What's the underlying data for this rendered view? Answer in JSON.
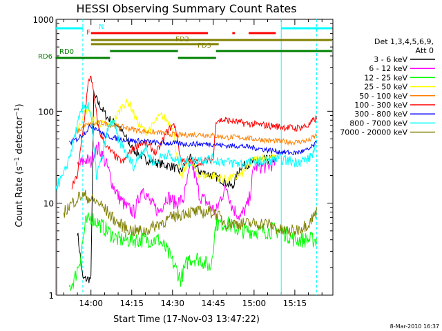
{
  "chart_data": {
    "type": "line",
    "title": "HESSI Observing Summary Count Rates",
    "xlabel": "Start Time (17-Nov-03 13:47:22)",
    "ylabel": "Count Rate (s⁻¹ detector⁻¹)",
    "ylabel_main": "Count Rate (s",
    "ylabel_sup1": "−1",
    "ylabel_mid": " detector",
    "ylabel_sup2": "−1",
    "ylabel_end": ")",
    "y_scale": "log",
    "ylim": [
      1,
      1000
    ],
    "xlim": [
      "13:47:22",
      "15:29:00"
    ],
    "x_ticks": [
      "14:00",
      "14:15",
      "14:30",
      "14:45",
      "15:00",
      "15:15"
    ],
    "y_ticks": [
      "1",
      "10",
      "100",
      "1000"
    ],
    "legend_header": [
      "Det 1,3,4,5,6,9,",
      "Att 0"
    ],
    "legend_position": "right",
    "footer_date": "8-Mar-2010 16:37",
    "series": [
      {
        "name": "3 - 6 keV",
        "color": "#000000",
        "x": [
          "13:55",
          "13:57",
          "13:59",
          "14:00",
          "14:01",
          "14:03",
          "14:06",
          "14:10",
          "14:15",
          "14:20",
          "14:25",
          "14:30",
          "14:33",
          "14:36",
          "14:40",
          "14:45",
          "14:48",
          "14:52",
          "14:55",
          "15:00",
          "15:05",
          "15:08"
        ],
        "values": [
          5,
          1.5,
          1.5,
          1.5,
          150,
          120,
          85,
          70,
          40,
          30,
          27,
          25,
          22,
          32,
          22,
          20,
          18,
          15,
          25,
          28,
          30,
          30
        ]
      },
      {
        "name": "6 - 12 keV",
        "color": "#ff00ff",
        "x": [
          "13:55",
          "13:58",
          "14:00",
          "14:01",
          "14:03",
          "14:06",
          "14:08",
          "14:10",
          "14:13",
          "14:16",
          "14:19",
          "14:22",
          "14:25",
          "14:28",
          "14:31",
          "14:34",
          "14:37",
          "14:40",
          "14:43",
          "14:46",
          "14:48",
          "14:50",
          "14:52",
          "14:55",
          "14:58",
          "15:00",
          "15:05",
          "15:08"
        ],
        "values": [
          25,
          30,
          28,
          35,
          40,
          25,
          16,
          12,
          9,
          8,
          15,
          10,
          8,
          12,
          10,
          11,
          28,
          12,
          10,
          8,
          12,
          15,
          9,
          7,
          10,
          25,
          25,
          28
        ]
      },
      {
        "name": "12 - 25 keV",
        "color": "#00ff00",
        "x": [
          "13:52",
          "13:54",
          "13:56",
          "13:58",
          "14:00",
          "14:03",
          "14:06",
          "14:10",
          "14:15",
          "14:20",
          "14:25",
          "14:28",
          "14:31",
          "14:33",
          "14:36",
          "14:40",
          "14:44",
          "14:46",
          "14:50",
          "14:55",
          "15:00",
          "15:05",
          "15:10",
          "15:15",
          "15:20",
          "15:23"
        ],
        "values": [
          1.2,
          1.5,
          2.5,
          6,
          7,
          6,
          5,
          4,
          4,
          4,
          4,
          3,
          2,
          1.5,
          2.5,
          2.5,
          2,
          6,
          6,
          5,
          5,
          5,
          5,
          4,
          4,
          4
        ]
      },
      {
        "name": "25 - 50 keV",
        "color": "#ffff00",
        "x": [
          "13:55",
          "13:57",
          "13:59",
          "14:00",
          "14:01",
          "14:03",
          "14:06",
          "14:08",
          "14:10",
          "14:12",
          "14:14",
          "14:16",
          "14:18",
          "14:20",
          "14:22",
          "14:24",
          "14:26",
          "14:28",
          "14:30",
          "14:33",
          "14:36",
          "14:40",
          "14:45",
          "14:50",
          "14:55",
          "15:00",
          "15:05",
          "15:08"
        ],
        "values": [
          60,
          90,
          110,
          90,
          80,
          75,
          70,
          75,
          95,
          120,
          125,
          90,
          70,
          60,
          65,
          80,
          90,
          80,
          70,
          18,
          30,
          20,
          20,
          18,
          20,
          30,
          32,
          30
        ]
      },
      {
        "name": "50 - 100 keV",
        "color": "#ff8000",
        "x": [
          "13:55",
          "13:58",
          "14:00",
          "14:04",
          "14:08",
          "14:14",
          "14:20",
          "14:26",
          "14:32",
          "14:40",
          "14:46",
          "14:50",
          "14:55",
          "15:00",
          "15:06",
          "15:10",
          "15:15",
          "15:20",
          "15:23"
        ],
        "values": [
          60,
          70,
          72,
          75,
          70,
          65,
          60,
          58,
          55,
          56,
          54,
          52,
          52,
          50,
          48,
          47,
          46,
          48,
          55
        ]
      },
      {
        "name": "100 - 300 keV",
        "color": "#ff0000",
        "x": [
          "13:53",
          "13:55",
          "13:57",
          "13:59",
          "14:00",
          "14:01",
          "14:03",
          "14:06",
          "14:08",
          "14:10",
          "14:12",
          "14:14",
          "14:16",
          "14:18",
          "14:20",
          "14:22",
          "14:24",
          "14:26",
          "14:28",
          "14:30",
          "14:31",
          "14:33",
          "14:36",
          "14:40",
          "14:45",
          "14:46",
          "14:50",
          "14:55",
          "15:00",
          "15:05",
          "15:10",
          "15:15",
          "15:20",
          "15:23"
        ],
        "values": [
          15,
          20,
          60,
          200,
          250,
          150,
          60,
          40,
          35,
          30,
          28,
          35,
          40,
          45,
          45,
          40,
          35,
          45,
          60,
          70,
          70,
          30,
          28,
          28,
          30,
          80,
          80,
          75,
          72,
          70,
          68,
          65,
          70,
          85
        ]
      },
      {
        "name": "300 - 800 keV",
        "color": "#0000ff",
        "x": [
          "13:52",
          "13:55",
          "13:58",
          "14:00",
          "14:02",
          "14:05",
          "14:10",
          "14:15",
          "14:20",
          "14:25",
          "14:30",
          "14:35",
          "14:40",
          "14:45",
          "14:50",
          "14:55",
          "15:00",
          "15:05",
          "15:10",
          "15:15",
          "15:20",
          "15:23"
        ],
        "values": [
          45,
          50,
          60,
          70,
          65,
          55,
          50,
          48,
          47,
          45,
          45,
          44,
          44,
          44,
          42,
          42,
          40,
          38,
          36,
          35,
          38,
          45
        ]
      },
      {
        "name": "800 - 7000 keV",
        "color": "#00ffff",
        "x": [
          "13:47",
          "13:50",
          "13:53",
          "13:55",
          "13:57",
          "13:59",
          "14:00",
          "14:01",
          "14:02",
          "14:04",
          "14:06",
          "14:08",
          "14:10",
          "14:12",
          "14:14",
          "14:16",
          "14:18",
          "14:20",
          "14:22",
          "14:24",
          "14:26",
          "14:28",
          "14:30",
          "14:33",
          "14:36",
          "14:40",
          "14:45",
          "14:50",
          "14:55",
          "15:00",
          "15:05",
          "15:10",
          "15:15",
          "15:20",
          "15:23"
        ],
        "values": [
          15,
          20,
          40,
          70,
          110,
          120,
          90,
          40,
          20,
          30,
          60,
          80,
          50,
          40,
          30,
          25,
          35,
          40,
          30,
          28,
          32,
          35,
          30,
          28,
          28,
          30,
          30,
          28,
          27,
          28,
          29,
          30,
          28,
          30,
          40
        ]
      },
      {
        "name": "7000 - 20000 keV",
        "color": "#808000",
        "x": [
          "13:50",
          "13:53",
          "13:56",
          "13:58",
          "14:00",
          "14:03",
          "14:06",
          "14:10",
          "14:15",
          "14:20",
          "14:25",
          "14:30",
          "14:35",
          "14:40",
          "14:45",
          "14:50",
          "14:55",
          "15:00",
          "15:05",
          "15:10",
          "15:15",
          "15:20",
          "15:23"
        ],
        "values": [
          8,
          10,
          12,
          12,
          11,
          10,
          8,
          6,
          5,
          5,
          6,
          7,
          8,
          8,
          8,
          6,
          6,
          6,
          6,
          5,
          5,
          6,
          8
        ]
      }
    ],
    "segment_labels": [
      {
        "label": "N",
        "color": "#00ffff"
      },
      {
        "label": "F",
        "color": "#ff0000"
      },
      {
        "label": "FD2",
        "color": "#808000"
      },
      {
        "label": "FD3",
        "color": "#808000"
      },
      {
        "label": "RD0",
        "color": "#008000"
      },
      {
        "label": "RD6",
        "color": "#008000"
      }
    ],
    "state_bars": [
      {
        "name": "N",
        "color": "#00ffff",
        "segments": [
          [
            "13:47",
            "13:57"
          ],
          [
            "15:10",
            "15:29"
          ]
        ]
      },
      {
        "name": "F",
        "color": "#ff0000",
        "segments": [
          [
            "14:00",
            "14:43"
          ],
          [
            "14:52",
            "14:53"
          ],
          [
            "14:58",
            "15:08"
          ]
        ]
      },
      {
        "name": "FD2",
        "color": "#808000",
        "segments": [
          [
            "14:00",
            "15:29"
          ]
        ]
      },
      {
        "name": "FD3",
        "color": "#808000",
        "segments": [
          [
            "14:00",
            "14:47"
          ]
        ]
      },
      {
        "name": "RD0",
        "color": "#008000",
        "segments": [
          [
            "14:07",
            "14:32"
          ],
          [
            "14:46",
            "15:29"
          ]
        ]
      },
      {
        "name": "RD6",
        "color": "#008000",
        "segments": [
          [
            "13:47",
            "14:07"
          ],
          [
            "14:32",
            "14:46"
          ]
        ]
      }
    ],
    "vlines": [
      {
        "time": "13:47",
        "color": "#00ffff"
      },
      {
        "time": "13:57",
        "color": "#00ffff",
        "dashed": true
      },
      {
        "time": "15:10",
        "color": "#00ffff"
      },
      {
        "time": "15:23",
        "color": "#00ffff",
        "dashed": true
      }
    ]
  }
}
